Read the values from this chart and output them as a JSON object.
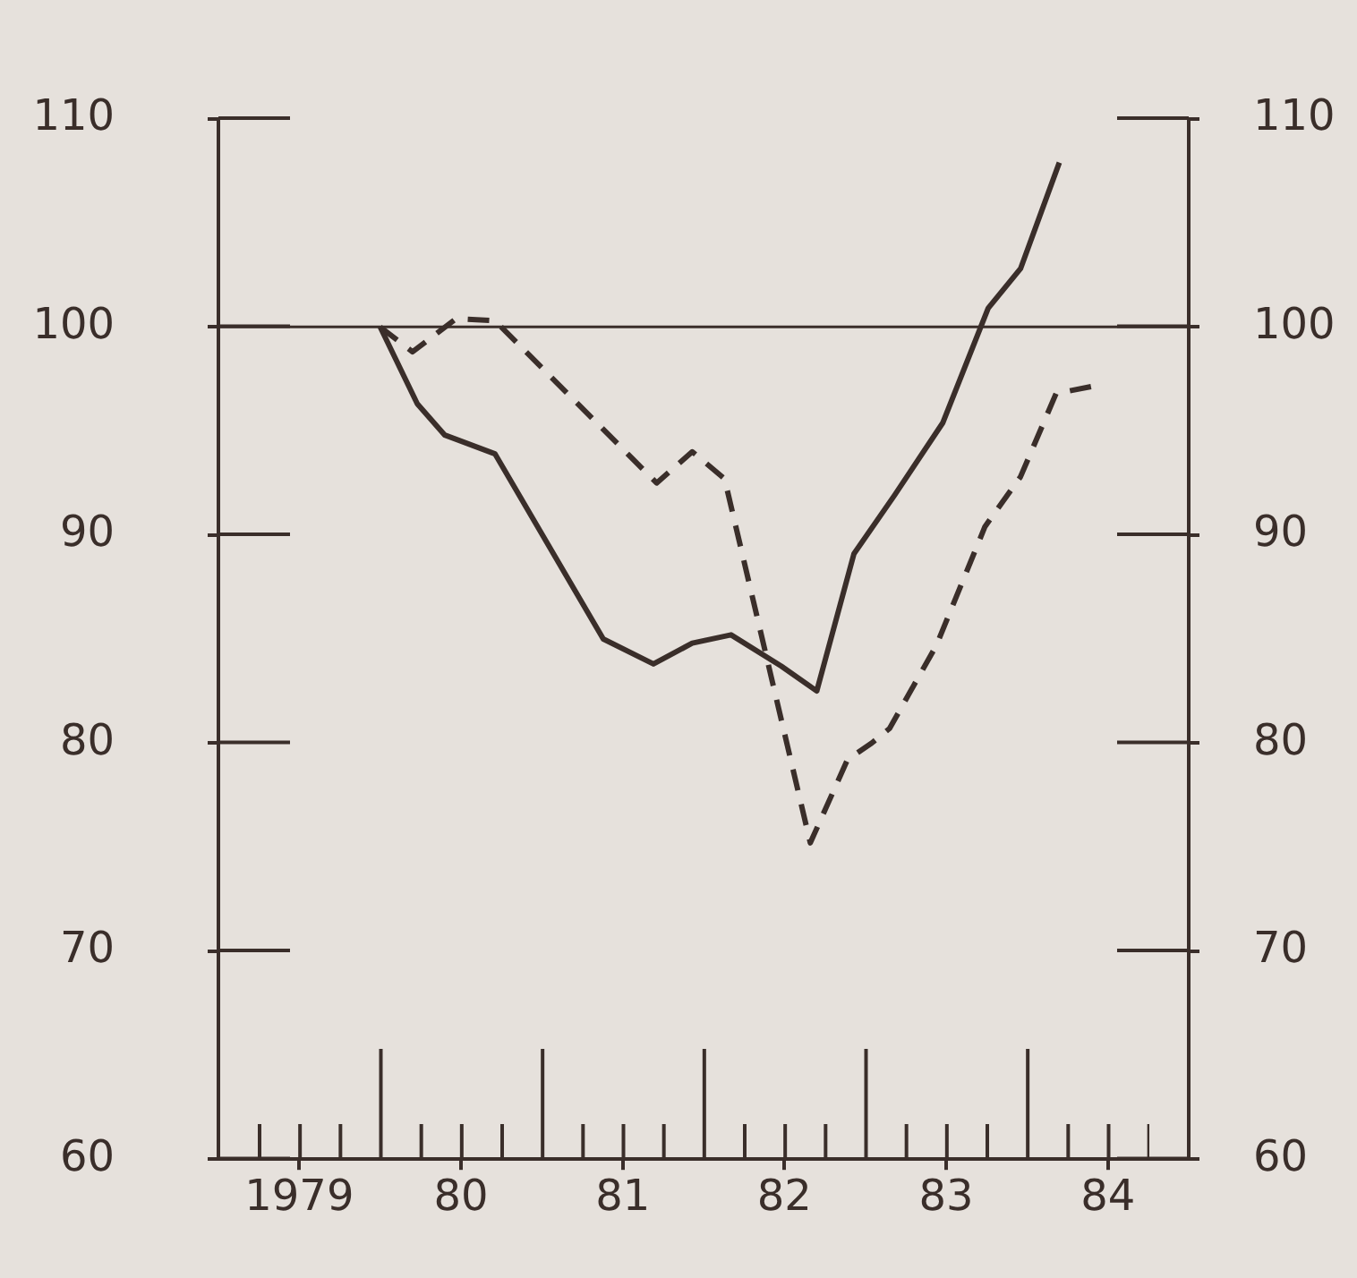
{
  "chart_data": {
    "type": "line",
    "series": [
      {
        "color": "#3a2e2a",
        "line_style": "solid",
        "x": [
          1979.5,
          1979.73,
          1979.9,
          1980.21,
          1980.88,
          1981.19,
          1981.43,
          1981.67,
          1981.98,
          1982.2,
          1982.43,
          1982.68,
          1982.98,
          1983.26,
          1983.46,
          1983.7
        ],
        "values": [
          100,
          96.3,
          94.8,
          93.9,
          85.0,
          83.8,
          84.8,
          85.2,
          83.7,
          82.5,
          89.1,
          91.9,
          95.4,
          100.9,
          102.8,
          107.9
        ]
      },
      {
        "color": "#3a2e2a",
        "line_style": "dashed",
        "x": [
          1979.5,
          1979.7,
          1979.97,
          1980.21,
          1981.21,
          1981.43,
          1981.63,
          1982.16,
          1982.39,
          1982.54,
          1982.65,
          1982.94,
          1983.24,
          1983.46,
          1983.68,
          1983.94
        ],
        "values": [
          100,
          98.8,
          100.4,
          100.3,
          92.5,
          94.0,
          92.7,
          75.2,
          79.2,
          80.0,
          80.7,
          84.7,
          90.4,
          92.8,
          96.8,
          97.2
        ]
      }
    ],
    "xlim": [
      1978.5,
      1984.5
    ],
    "xticks": [
      {
        "value": 1979,
        "label": "1979"
      },
      {
        "value": 1980,
        "label": "80"
      },
      {
        "value": 1981,
        "label": "81"
      },
      {
        "value": 1982,
        "label": "82"
      },
      {
        "value": 1983,
        "label": "83"
      },
      {
        "value": 1984,
        "label": "84"
      }
    ],
    "ylim": [
      60,
      110
    ],
    "yticks": [
      60,
      70,
      80,
      90,
      100,
      110
    ],
    "y2lim": [
      60,
      110
    ],
    "y2ticks": [
      60,
      70,
      80,
      90,
      100,
      110
    ],
    "ref_lines": [
      {
        "axis": "y",
        "value": 100,
        "color": "#3a2e2a"
      }
    ],
    "grid": false,
    "legend": false,
    "marker": "none"
  }
}
